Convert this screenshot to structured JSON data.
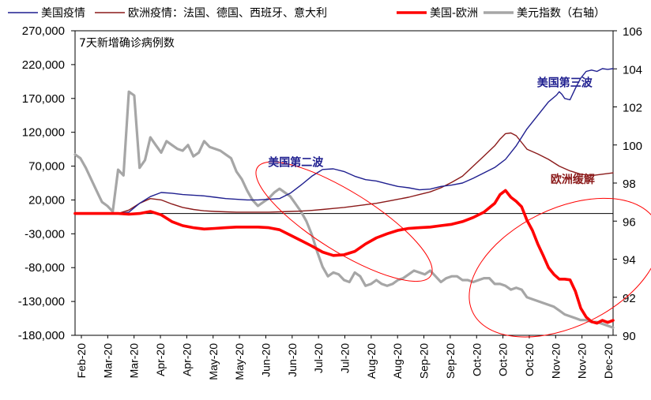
{
  "chart_data": {
    "type": "line",
    "subtitle": "7天新增确诊病例数",
    "legend": [
      {
        "key": "us",
        "label": "美国疫情",
        "color": "#1f1f8f"
      },
      {
        "key": "eu",
        "label": "欧洲疫情：法国、德国、西班牙、意大利",
        "color": "#8b1a1a"
      },
      {
        "key": "diff",
        "label": "美国-欧洲",
        "color": "#ff0000"
      },
      {
        "key": "dxy",
        "label": "美元指数（右轴）",
        "color": "#a6a6a6"
      }
    ],
    "y_left": {
      "min": -180000,
      "max": 270000,
      "ticks": [
        270000,
        220000,
        170000,
        120000,
        70000,
        20000,
        -30000,
        -80000,
        -130000,
        -180000
      ],
      "tick_labels": [
        "270,000",
        "220,000",
        "170,000",
        "120,000",
        "70,000",
        "20,000",
        "-30,000",
        "-80,000",
        "-130,000",
        "-180,000"
      ]
    },
    "y_right": {
      "min": 90,
      "max": 106,
      "ticks": [
        106,
        104,
        102,
        100,
        98,
        96,
        94,
        92,
        90
      ],
      "tick_labels": [
        "106",
        "104",
        "102",
        "100",
        "98",
        "96",
        "94",
        "92",
        "90"
      ]
    },
    "x_range": [
      0,
      100
    ],
    "x_labels": [
      "Feb-20",
      "Mar-20",
      "Mar-20",
      "Apr-20",
      "Apr-20",
      "May-20",
      "May-20",
      "Jun-20",
      "Jun-20",
      "Jul-20",
      "Jul-20",
      "Aug-20",
      "Aug-20",
      "Sep-20",
      "Sep-20",
      "Oct-20",
      "Oct-20",
      "Oct-20",
      "Nov-20",
      "Nov-20",
      "Dec-20"
    ],
    "annotations": [
      {
        "text": "美国第二波",
        "x": 41,
        "y": -1,
        "color": "#1f1f8f"
      },
      {
        "text": "美国第三波",
        "x": 91,
        "y": 33,
        "color": "#1f1f8f"
      },
      {
        "text": "欧洲缓解",
        "x": 92.5,
        "y": -8,
        "color": "#8b1a1a"
      }
    ],
    "ellipses": [
      {
        "cx": 50,
        "cy": -12000,
        "rx": 19,
        "ry": 44000,
        "rotate": 32
      },
      {
        "cx": 91,
        "cy": -80000,
        "rx": 19,
        "ry": 87000,
        "rotate": -26
      }
    ],
    "series": [
      {
        "key": "us",
        "axis": "left",
        "color": "#1f1f8f",
        "width": 1.4,
        "x": [
          0,
          8,
          10,
          12,
          14,
          16,
          18,
          20,
          22,
          24,
          26,
          28,
          30,
          32,
          34,
          36,
          38,
          40,
          42,
          44,
          46,
          48,
          50,
          52,
          54,
          56,
          58,
          60,
          62,
          64,
          66,
          68,
          70,
          72,
          74,
          76,
          78,
          80,
          82,
          84,
          86,
          88,
          89.5,
          90,
          90.5,
          91,
          92,
          93,
          94,
          95,
          96,
          97,
          98,
          99,
          100
        ],
        "y": [
          0,
          0,
          2000,
          15000,
          25000,
          31000,
          30000,
          28000,
          27000,
          26000,
          24000,
          22000,
          21000,
          20000,
          20000,
          21000,
          22000,
          30000,
          42000,
          55000,
          65000,
          66000,
          62000,
          55000,
          50000,
          48000,
          44000,
          40000,
          38000,
          35000,
          36000,
          40000,
          42000,
          45000,
          52000,
          60000,
          68000,
          80000,
          100000,
          125000,
          145000,
          165000,
          175000,
          180000,
          176000,
          170000,
          168000,
          185000,
          200000,
          210000,
          212000,
          210000,
          214000,
          213000,
          214000
        ]
      },
      {
        "key": "eu",
        "axis": "left",
        "color": "#8b1a1a",
        "width": 1.4,
        "x": [
          0,
          8,
          10,
          12,
          14,
          16,
          18,
          20,
          22,
          24,
          26,
          28,
          30,
          32,
          34,
          36,
          38,
          40,
          42,
          44,
          46,
          48,
          50,
          52,
          54,
          56,
          58,
          60,
          62,
          64,
          66,
          68,
          70,
          72,
          74,
          76,
          78,
          79,
          80,
          81,
          82,
          83,
          84,
          86,
          88,
          90,
          92,
          94,
          96,
          98,
          100
        ],
        "y": [
          0,
          0,
          5000,
          15000,
          22000,
          20000,
          14000,
          9000,
          6000,
          4000,
          3000,
          2500,
          2000,
          2000,
          2000,
          2000,
          2500,
          3000,
          3500,
          4500,
          6000,
          7500,
          9000,
          11000,
          13000,
          15000,
          18000,
          21000,
          24000,
          28000,
          32000,
          38000,
          46000,
          55000,
          70000,
          85000,
          100000,
          110000,
          118000,
          119000,
          115000,
          105000,
          95000,
          88000,
          80000,
          70000,
          63000,
          58000,
          56000,
          58000,
          60000
        ]
      },
      {
        "key": "diff",
        "axis": "left",
        "color": "#ff0000",
        "width": 3.6,
        "x": [
          0,
          8,
          10,
          12,
          14,
          16,
          18,
          20,
          22,
          24,
          26,
          28,
          30,
          32,
          34,
          36,
          38,
          40,
          42,
          44,
          46,
          48,
          50,
          52,
          54,
          56,
          58,
          60,
          62,
          64,
          66,
          68,
          70,
          72,
          74,
          76,
          78,
          79,
          80,
          81,
          82,
          83,
          84,
          85,
          86,
          87,
          88,
          89,
          90,
          91,
          92,
          93,
          94,
          95,
          96,
          97,
          98,
          99,
          100
        ],
        "y": [
          0,
          0,
          -1000,
          0,
          3000,
          -2000,
          -12000,
          -18000,
          -21000,
          -23000,
          -22000,
          -21000,
          -20000,
          -20000,
          -20000,
          -21000,
          -24000,
          -32000,
          -40000,
          -48000,
          -57000,
          -62000,
          -61000,
          -56000,
          -45000,
          -36000,
          -30000,
          -25000,
          -22000,
          -21000,
          -20000,
          -18000,
          -16000,
          -12000,
          -6000,
          2000,
          15000,
          28000,
          34000,
          24000,
          18000,
          10000,
          -10000,
          -25000,
          -45000,
          -62000,
          -80000,
          -90000,
          -97000,
          -97000,
          -98000,
          -115000,
          -140000,
          -153000,
          -160000,
          -162000,
          -158000,
          -161000,
          -158000
        ]
      },
      {
        "key": "dxy",
        "axis": "right",
        "color": "#a6a6a6",
        "width": 3.2,
        "x": [
          0,
          1,
          2,
          3,
          4,
          5,
          6,
          7,
          8,
          9,
          10,
          11,
          12,
          13,
          14,
          15,
          16,
          17,
          18,
          19,
          20,
          21,
          22,
          23,
          24,
          25,
          26,
          27,
          28,
          29,
          30,
          31,
          32,
          33,
          34,
          35,
          36,
          37,
          38,
          39,
          40,
          41,
          42,
          43,
          44,
          45,
          46,
          47,
          48,
          49,
          50,
          51,
          52,
          53,
          54,
          55,
          56,
          57,
          58,
          59,
          60,
          61,
          62,
          63,
          64,
          65,
          66,
          67,
          68,
          69,
          70,
          71,
          72,
          73,
          74,
          75,
          76,
          77,
          78,
          79,
          80,
          81,
          82,
          83,
          84,
          85,
          86,
          87,
          88,
          89,
          90,
          91,
          92,
          93,
          94,
          95,
          96,
          97,
          98,
          99,
          100
        ],
        "y": [
          99.5,
          99.3,
          98.8,
          98.2,
          97.6,
          97.0,
          96.8,
          96.5,
          98.7,
          98.4,
          102.8,
          102.6,
          98.8,
          99.2,
          100.4,
          100.0,
          99.6,
          100.2,
          100.0,
          99.8,
          99.7,
          100.0,
          99.4,
          99.6,
          100.2,
          99.9,
          99.8,
          99.7,
          99.5,
          99.3,
          98.6,
          98.2,
          97.6,
          97.1,
          96.8,
          97.0,
          97.2,
          97.5,
          97.7,
          97.5,
          97.3,
          96.9,
          96.5,
          96.0,
          95.3,
          94.4,
          93.6,
          93.1,
          93.3,
          93.2,
          92.9,
          92.8,
          93.3,
          93.1,
          92.6,
          92.7,
          92.9,
          92.7,
          92.6,
          92.7,
          92.9,
          93.0,
          93.2,
          93.4,
          93.3,
          93.2,
          93.4,
          93.1,
          92.8,
          93.0,
          93.1,
          93.1,
          92.9,
          92.9,
          92.8,
          92.9,
          93.0,
          93.0,
          92.7,
          92.7,
          92.6,
          92.4,
          92.5,
          92.4,
          92.0,
          91.9,
          91.8,
          91.7,
          91.6,
          91.5,
          91.3,
          91.1,
          91.0,
          90.9,
          90.8,
          90.8,
          90.7,
          90.7,
          90.6,
          90.5,
          90.4
        ]
      }
    ]
  }
}
